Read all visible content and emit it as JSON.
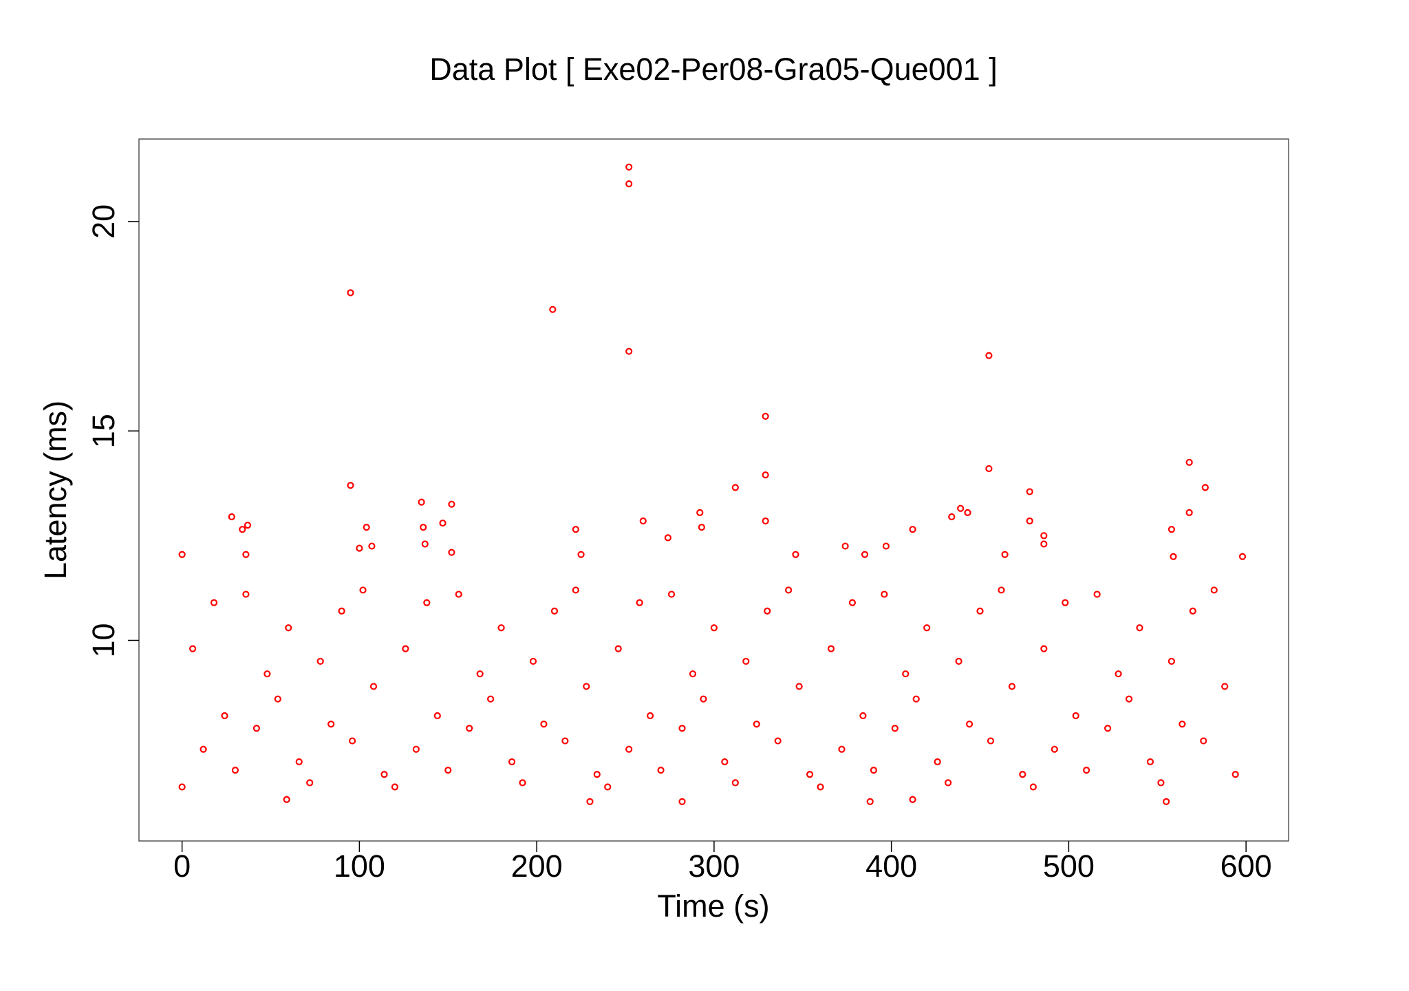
{
  "chart_data": {
    "type": "scatter",
    "title": "Data Plot [ Exe02-Per08-Gra05-Que001 ]",
    "x_label": "Time (s)",
    "y_label": "Latency (ms)",
    "color": "#ff0000",
    "xlim": [
      -24.3,
      624
    ],
    "ylim": [
      5.21,
      21.97
    ],
    "xticks": [
      0,
      100,
      200,
      300,
      400,
      500,
      600
    ],
    "yticks": [
      10,
      15,
      20
    ],
    "x": [
      252,
      252,
      95,
      209,
      252,
      455,
      329,
      329,
      568,
      455,
      95,
      312,
      577,
      478,
      135,
      152,
      439,
      443,
      292,
      568,
      28,
      434,
      260,
      329,
      478,
      147,
      37,
      293,
      104,
      34,
      222,
      412,
      558,
      136,
      486,
      274,
      137,
      486,
      107,
      374,
      397,
      100,
      152,
      346,
      385,
      464,
      225,
      0,
      36,
      598,
      559,
      59,
      230,
      282,
      388,
      555,
      412,
      0,
      6,
      12,
      18,
      24,
      30,
      36,
      42,
      48,
      54,
      60,
      66,
      72,
      78,
      84,
      90,
      96,
      102,
      108,
      114,
      120,
      126,
      132,
      138,
      144,
      150,
      156,
      162,
      168,
      174,
      180,
      186,
      192,
      198,
      204,
      210,
      216,
      222,
      228,
      234,
      240,
      246,
      252,
      258,
      264,
      270,
      276,
      282,
      288,
      294,
      300,
      306,
      312,
      318,
      324,
      330,
      336,
      342,
      348,
      354,
      360,
      366,
      372,
      378,
      384,
      390,
      396,
      402,
      408,
      414,
      420,
      426,
      432,
      438,
      444,
      450,
      456,
      462,
      468,
      474,
      480,
      486,
      492,
      498,
      504,
      510,
      516,
      522,
      528,
      534,
      540,
      546,
      552,
      558,
      564,
      570,
      576,
      582,
      588,
      594
    ],
    "values": [
      21.3,
      20.9,
      18.3,
      17.9,
      16.9,
      16.8,
      15.35,
      13.95,
      14.25,
      14.1,
      13.7,
      13.65,
      13.65,
      13.55,
      13.3,
      13.25,
      13.15,
      13.05,
      13.05,
      13.05,
      12.95,
      12.95,
      12.85,
      12.85,
      12.85,
      12.8,
      12.75,
      12.7,
      12.7,
      12.65,
      12.65,
      12.65,
      12.65,
      12.7,
      12.5,
      12.45,
      12.3,
      12.3,
      12.25,
      12.25,
      12.25,
      12.2,
      12.1,
      12.05,
      12.05,
      12.05,
      12.05,
      12.05,
      12.05,
      12,
      12,
      6.2,
      6.15,
      6.15,
      6.15,
      6.15,
      6.2,
      6.5,
      9.8,
      7.4,
      10.9,
      8.2,
      6.9,
      11.1,
      7.9,
      9.2,
      8.6,
      10.3,
      7.1,
      6.6,
      9.5,
      8.0,
      10.7,
      7.6,
      11.2,
      8.9,
      6.8,
      6.5,
      9.8,
      7.4,
      10.9,
      8.2,
      6.9,
      11.1,
      7.9,
      9.2,
      8.6,
      10.3,
      7.1,
      6.6,
      9.5,
      8.0,
      10.7,
      7.6,
      11.2,
      8.9,
      6.8,
      6.5,
      9.8,
      7.4,
      10.9,
      8.2,
      6.9,
      11.1,
      7.9,
      9.2,
      8.6,
      10.3,
      7.1,
      6.6,
      9.5,
      8.0,
      10.7,
      7.6,
      11.2,
      8.9,
      6.8,
      6.5,
      9.8,
      7.4,
      10.9,
      8.2,
      6.9,
      11.1,
      7.9,
      9.2,
      8.6,
      10.3,
      7.1,
      6.6,
      9.5,
      8.0,
      10.7,
      7.6,
      11.2,
      8.9,
      6.8,
      6.5,
      9.8,
      7.4,
      10.9,
      8.2,
      6.9,
      11.1,
      7.9,
      9.2,
      8.6,
      10.3,
      7.1,
      6.6,
      9.5,
      8.0,
      10.7,
      7.6,
      11.2,
      8.9,
      6.8
    ]
  }
}
